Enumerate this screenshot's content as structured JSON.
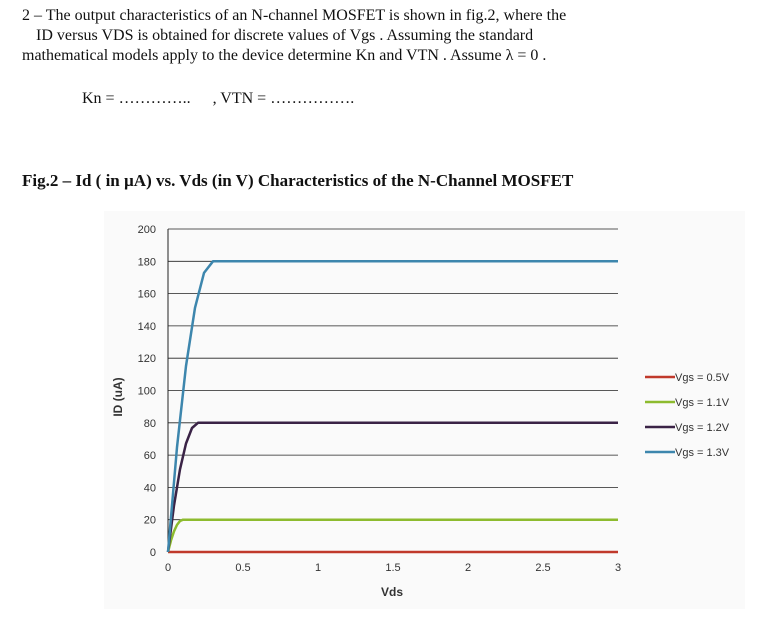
{
  "problem": {
    "line1": "2 – The output characteristics of an N-channel MOSFET is shown in fig.2, where the",
    "line2": "ID versus VDS is obtained  for discrete  values of Vgs .  Assuming the standard",
    "line3": "mathematical models apply to the device determine Kn and VTN . Assume λ = 0 ."
  },
  "answer": {
    "kn": "Kn = …………..",
    "vtn": ", VTN = ……………."
  },
  "figure_title": "Fig.2 – Id ( in µA) vs. Vds (in V) Characteristics of the N-Channel MOSFET",
  "chart_data": {
    "type": "line",
    "title": "",
    "xlabel": "Vds",
    "ylabel": "ID (uA)",
    "xlim": [
      0,
      3
    ],
    "ylim": [
      0,
      200
    ],
    "xticks": [
      0,
      0.5,
      1,
      1.5,
      2,
      2.5,
      3
    ],
    "xtick_labels": [
      "0",
      "0.5",
      "1",
      "1.5",
      "2",
      "2.5",
      "3"
    ],
    "yticks": [
      0,
      20,
      40,
      60,
      80,
      100,
      120,
      140,
      160,
      180,
      200
    ],
    "ytick_labels": [
      "0",
      "20",
      "40",
      "60",
      "80",
      "100",
      "120",
      "140",
      "160",
      "180",
      "200"
    ],
    "grid": true,
    "legend_position": "right",
    "series": [
      {
        "name": "Vgs = 0.5V",
        "color": "#c0392b",
        "x": [
          0,
          3
        ],
        "y": [
          0,
          0
        ]
      },
      {
        "name": "Vgs = 1.1V",
        "color": "#8dbb2e",
        "x": [
          0,
          0.02,
          0.04,
          0.06,
          0.08,
          0.1,
          3
        ],
        "y": [
          0,
          7.2,
          12.8,
          16.8,
          19.2,
          20,
          20
        ]
      },
      {
        "name": "Vgs = 1.2V",
        "color": "#3a2346",
        "x": [
          0,
          0.04,
          0.08,
          0.12,
          0.16,
          0.2,
          3
        ],
        "y": [
          0,
          28.8,
          51.2,
          67.2,
          76.8,
          80,
          80
        ]
      },
      {
        "name": "Vgs = 1.3V",
        "color": "#3d86ad",
        "x": [
          0,
          0.06,
          0.12,
          0.18,
          0.24,
          0.3,
          3
        ],
        "y": [
          0,
          64.8,
          115.2,
          151.2,
          172.8,
          180,
          180
        ]
      }
    ]
  }
}
